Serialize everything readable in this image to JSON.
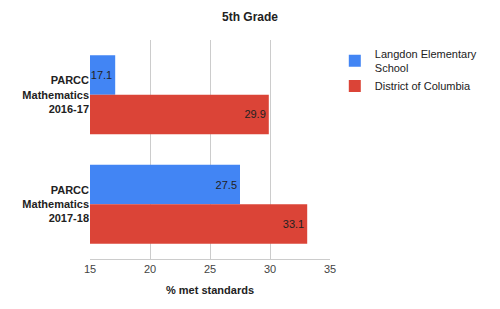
{
  "chart_data": {
    "type": "bar",
    "title": "5th Grade",
    "orientation": "horizontal",
    "categories": [
      "PARCC Mathematics 2016-17",
      "PARCC Mathematics 2017-18"
    ],
    "series": [
      {
        "name": "Langdon Elementary School",
        "color": "#4285f4",
        "values": [
          17.1,
          27.5
        ]
      },
      {
        "name": "District of Columbia",
        "color": "#db4437",
        "values": [
          29.9,
          33.1
        ]
      }
    ],
    "x_label": "% met standards",
    "xlim": [
      15,
      35
    ],
    "xticks": [
      15,
      20,
      25,
      30,
      35
    ],
    "grid": true,
    "legend": "right",
    "data_labels": true
  }
}
